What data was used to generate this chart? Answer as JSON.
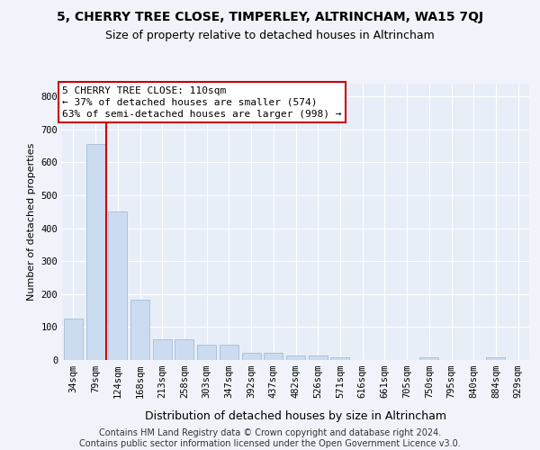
{
  "title": "5, CHERRY TREE CLOSE, TIMPERLEY, ALTRINCHAM, WA15 7QJ",
  "subtitle": "Size of property relative to detached houses in Altrincham",
  "xlabel": "Distribution of detached houses by size in Altrincham",
  "ylabel": "Number of detached properties",
  "categories": [
    "34sqm",
    "79sqm",
    "124sqm",
    "168sqm",
    "213sqm",
    "258sqm",
    "303sqm",
    "347sqm",
    "392sqm",
    "437sqm",
    "482sqm",
    "526sqm",
    "571sqm",
    "616sqm",
    "661sqm",
    "705sqm",
    "750sqm",
    "795sqm",
    "840sqm",
    "884sqm",
    "929sqm"
  ],
  "values": [
    125,
    655,
    450,
    183,
    62,
    62,
    47,
    46,
    22,
    23,
    14,
    14,
    8,
    0,
    0,
    0,
    8,
    0,
    0,
    8,
    0
  ],
  "bar_color": "#ccdcf0",
  "bar_edge_color": "#9ab4d0",
  "vline_color": "#cc0000",
  "vline_bar_index": 1,
  "annotation_text": "5 CHERRY TREE CLOSE: 110sqm\n← 37% of detached houses are smaller (574)\n63% of semi-detached houses are larger (998) →",
  "annot_box_color": "white",
  "annot_edge_color": "#cc0000",
  "ylim_max": 840,
  "yticks": [
    0,
    100,
    200,
    300,
    400,
    500,
    600,
    700,
    800
  ],
  "footer_line1": "Contains HM Land Registry data © Crown copyright and database right 2024.",
  "footer_line2": "Contains public sector information licensed under the Open Government Licence v3.0.",
  "bg_color": "#f0f4fa",
  "plot_bg_color": "#e8eef8",
  "grid_color": "#ffffff",
  "title_fontsize": 10,
  "subtitle_fontsize": 9,
  "ylabel_fontsize": 8,
  "xlabel_fontsize": 9,
  "tick_fontsize": 7.5,
  "annot_fontsize": 8,
  "footer_fontsize": 7
}
